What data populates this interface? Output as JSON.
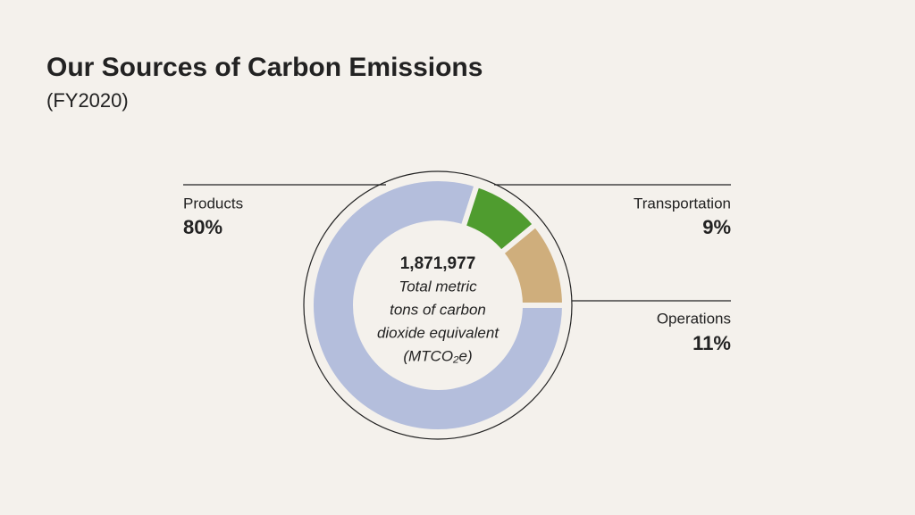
{
  "chart_data": {
    "type": "pie",
    "title": "Our Sources of Carbon Emissions",
    "subtitle": "(FY2020)",
    "categories": [
      "Products",
      "Transportation",
      "Operations"
    ],
    "values": [
      80,
      9,
      11
    ],
    "value_labels": [
      "80%",
      "9%",
      "11%"
    ],
    "colors": [
      "#b4bedc",
      "#4f9c2f",
      "#cfae7c"
    ],
    "annotations": [
      "1,871,977",
      "Total metric",
      "tons of carbon",
      "dioxide equivalent",
      "(MTCO₂e)"
    ]
  }
}
